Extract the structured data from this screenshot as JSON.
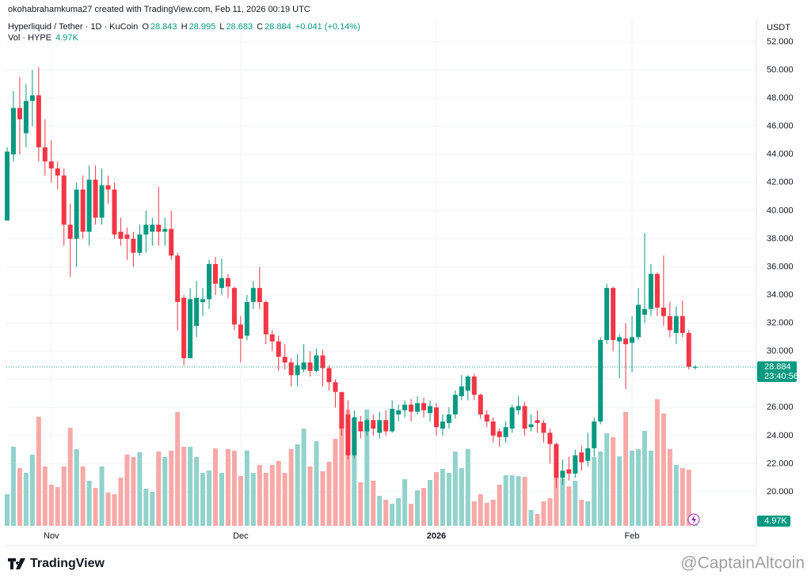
{
  "header": {
    "credit": "okohabrahamkuma27 created with TradingView.com, Feb 11, 2026 00:19 UTC"
  },
  "legend": {
    "symbol": "Hyperliquid / Tether · 1D · KuCoin",
    "o": "O",
    "h": "H",
    "l": "L",
    "c": "C",
    "change": "+0.041 (+0.14%)",
    "vol_name": "Vol · HYPE"
  },
  "chart_data": {
    "type": "candlestick",
    "currency": "USDT",
    "categories": [
      null,
      null,
      null,
      null,
      null,
      null,
      null,
      "Nov",
      null,
      null,
      null,
      null,
      null,
      null,
      null,
      null,
      null,
      null,
      null,
      null,
      null,
      null,
      null,
      null,
      null,
      null,
      null,
      null,
      null,
      null,
      null,
      null,
      null,
      null,
      null,
      null,
      null,
      "Dec",
      null,
      null,
      null,
      null,
      null,
      null,
      null,
      null,
      null,
      null,
      null,
      null,
      null,
      null,
      null,
      null,
      null,
      null,
      null,
      null,
      null,
      null,
      null,
      null,
      null,
      null,
      null,
      null,
      null,
      null,
      "2026",
      null,
      null,
      null,
      null,
      null,
      null,
      null,
      null,
      null,
      null,
      null,
      null,
      null,
      null,
      null,
      null,
      null,
      null,
      null,
      null,
      null,
      null,
      null,
      null,
      null,
      null,
      null,
      null,
      null,
      null,
      "Feb",
      null,
      null,
      null,
      null,
      null,
      null,
      null,
      null,
      null,
      null
    ],
    "open": [
      39.3,
      44,
      47.3,
      45.5,
      47.8,
      48.2,
      44.5,
      43.5,
      43,
      42.5,
      39,
      38,
      41.5,
      38.5,
      42.2,
      39.5,
      41.8,
      41.5,
      38.5,
      38.3,
      38,
      37,
      38.3,
      38.5,
      39,
      38.5,
      38.7,
      36.8,
      33.8,
      29.5,
      31.8,
      33.5,
      33.7,
      36.2,
      34.5,
      35.2,
      34.5,
      31.9,
      31.1,
      33.5,
      34.5,
      33.5,
      31.2,
      30.7,
      29.6,
      29.2,
      28.3,
      28.7,
      29.2,
      28.6,
      29.7,
      28.8,
      27.8,
      27.1,
      25.5,
      22.6,
      25,
      24.3,
      25.1,
      24.2,
      25.1,
      24.3,
      25.5,
      25.8,
      26.2,
      25.7,
      26.3,
      25.6,
      26,
      24.5,
      24.9,
      25.5,
      26.8,
      27.2,
      28.2,
      26.9,
      25.5,
      25,
      24.3,
      23.9,
      24.5,
      25.8,
      26.1,
      24.6,
      25.1,
      24.9,
      24.2,
      23.4,
      21,
      21.6,
      21.3,
      22.8,
      22.2,
      23.1,
      25,
      30.8,
      34.5,
      30.7,
      30.9,
      30.6,
      31,
      32.6,
      33,
      35.5,
      33.1,
      32.5,
      31.3,
      32.5,
      31.3,
      28.843
    ],
    "high": [
      44.5,
      48.5,
      49.5,
      49,
      50,
      50.2,
      46.5,
      45,
      43.5,
      43,
      40.5,
      42,
      42.5,
      43.2,
      43.2,
      43,
      42.5,
      42,
      39.5,
      38.8,
      38.5,
      39,
      40,
      39.5,
      41.7,
      39.5,
      40,
      37,
      34,
      34.5,
      35,
      34.5,
      36.5,
      36.7,
      36.6,
      35.5,
      34.6,
      32.5,
      34,
      35,
      36,
      33.6,
      31.5,
      31.1,
      30.5,
      29.5,
      29.8,
      30.5,
      30,
      30.2,
      30.1,
      29,
      28,
      27.1,
      26.5,
      25.8,
      25.4,
      25.2,
      25.5,
      25.7,
      25.8,
      26.5,
      26.2,
      26.5,
      26.6,
      26.8,
      26.7,
      26.5,
      26.3,
      25.5,
      26,
      27.2,
      28.3,
      28.3,
      28.4,
      27,
      25.8,
      25.3,
      24.5,
      25,
      26.2,
      26.8,
      26.4,
      25.5,
      25.8,
      25.1,
      24.5,
      23.5,
      22.3,
      22.5,
      23,
      23.3,
      24.2,
      25.3,
      31,
      34.8,
      34.6,
      31.2,
      32,
      32.5,
      34.5,
      38.4,
      36.2,
      35.6,
      36.8,
      33.5,
      33.2,
      33.6,
      31.5,
      28.995
    ],
    "low": [
      39.3,
      43.5,
      44,
      44.5,
      46,
      43.5,
      42.5,
      42,
      41.5,
      37.5,
      35.3,
      36,
      38,
      37.5,
      39,
      39,
      40.5,
      38,
      37.5,
      36.5,
      36,
      36.8,
      37,
      37.5,
      37.5,
      37.5,
      36.5,
      31.5,
      29,
      29.5,
      31,
      32.5,
      33,
      34,
      34,
      33.8,
      31.5,
      29.2,
      30.8,
      33,
      33,
      30.5,
      30,
      28.6,
      28.7,
      27.5,
      27.5,
      28.5,
      28.2,
      28.5,
      27.5,
      27.2,
      26,
      24,
      22.3,
      22.4,
      23.8,
      24,
      24,
      23.8,
      24,
      24.2,
      25,
      25.3,
      25,
      25.5,
      25.3,
      25,
      24,
      24,
      24.5,
      25.2,
      26.5,
      26.5,
      26.5,
      25.2,
      24.6,
      23.5,
      23.2,
      23.5,
      24.2,
      25.5,
      24,
      24.3,
      24.2,
      23.5,
      22,
      20.3,
      20.5,
      20.8,
      21,
      21.5,
      21.8,
      22.5,
      24.8,
      30.5,
      30,
      28.1,
      27.3,
      28.5,
      30.8,
      32,
      32.5,
      32.5,
      31.8,
      31,
      30.5,
      31,
      28.7,
      28.683
    ],
    "close": [
      44.2,
      47.3,
      46.5,
      47.8,
      48.2,
      44.5,
      43.5,
      43,
      42.5,
      39,
      38,
      41.5,
      38.5,
      42.2,
      39.5,
      41.8,
      41.5,
      38.3,
      38,
      38,
      37,
      38.3,
      39,
      39,
      38.5,
      38.7,
      36.8,
      33.5,
      29.5,
      33.7,
      33.8,
      33.7,
      36.2,
      34.8,
      35.2,
      34.6,
      31.9,
      30.9,
      33.5,
      34.5,
      33.5,
      31.2,
      30.7,
      29.6,
      29.2,
      28.3,
      29,
      29.2,
      28.6,
      29.7,
      28.8,
      27.8,
      27.1,
      24.5,
      22.6,
      25.3,
      24.3,
      25.1,
      24.5,
      25.1,
      24.3,
      25.9,
      25.8,
      26.2,
      25.7,
      26.3,
      25.8,
      26.1,
      24.6,
      25,
      25.5,
      26.9,
      27.5,
      28.2,
      26.9,
      25.5,
      25,
      24,
      23.9,
      24.6,
      26,
      26.1,
      24.5,
      24.8,
      24.9,
      24.2,
      23.4,
      21,
      21.5,
      21.3,
      22.6,
      22.1,
      23.1,
      25,
      30.8,
      34.5,
      30.8,
      31,
      30.5,
      31,
      33.3,
      33,
      35.5,
      33.1,
      32.5,
      31.5,
      32.5,
      31.3,
      28.9,
      28.884
    ],
    "volume": [
      33200,
      83000,
      60600,
      55600,
      74700,
      114500,
      62300,
      43200,
      40700,
      62300,
      102900,
      80500,
      62300,
      47300,
      39800,
      62300,
      34900,
      33200,
      50600,
      74700,
      72200,
      77200,
      39000,
      35700,
      78000,
      72200,
      78900,
      119500,
      83000,
      83000,
      72200,
      55600,
      58100,
      81300,
      55600,
      80500,
      78900,
      52300,
      78900,
      55600,
      63900,
      55600,
      63900,
      68100,
      55600,
      80500,
      85500,
      102100,
      62300,
      88800,
      57300,
      67200,
      91300,
      124500,
      122000,
      102100,
      45700,
      122000,
      47300,
      31500,
      27400,
      23200,
      29100,
      49000,
      23200,
      37400,
      39800,
      48100,
      56400,
      59800,
      55600,
      78000,
      60600,
      80500,
      25700,
      33200,
      24100,
      27400,
      43200,
      53100,
      53100,
      52300,
      51500,
      16600,
      12500,
      25700,
      29100,
      51500,
      49800,
      41500,
      47300,
      27400,
      25700,
      72200,
      78000,
      97100,
      93000,
      73000,
      119500,
      78900,
      80500,
      99600,
      78900,
      132800,
      117900,
      80500,
      63900,
      60600,
      58900,
      4970
    ],
    "last_volume_label": "4.97K",
    "volume_lim": [
      0,
      180000
    ],
    "up_color": "#089981",
    "down_color": "#f23645",
    "up_volume_color": "#92d2cc",
    "down_volume_color": "#f7a9a7",
    "ylim": [
      17.58,
      53.63
    ],
    "yticks": [
      {
        "value": 20,
        "label": "20.000"
      },
      {
        "value": 22,
        "label": "22.000"
      },
      {
        "value": 24,
        "label": "24.000"
      },
      {
        "value": 26,
        "label": "26.000"
      },
      {
        "value": 28,
        "label": "28.000"
      },
      {
        "value": 30,
        "label": "30.000"
      },
      {
        "value": 32,
        "label": "32.000"
      },
      {
        "value": 34,
        "label": "34.000"
      },
      {
        "value": 36,
        "label": "36.000"
      },
      {
        "value": 38,
        "label": "38.000"
      },
      {
        "value": 40,
        "label": "40.000"
      },
      {
        "value": 42,
        "label": "42.000"
      },
      {
        "value": 44,
        "label": "44.000"
      },
      {
        "value": 46,
        "label": "46.000"
      },
      {
        "value": 48,
        "label": "48.000"
      },
      {
        "value": 50,
        "label": "50.000"
      },
      {
        "value": 52,
        "label": "52.000"
      }
    ],
    "countdown": "23:40:56",
    "grid": true
  },
  "footer": {
    "brand": "TradingView",
    "watermark": "@CaptainAltcoin"
  }
}
